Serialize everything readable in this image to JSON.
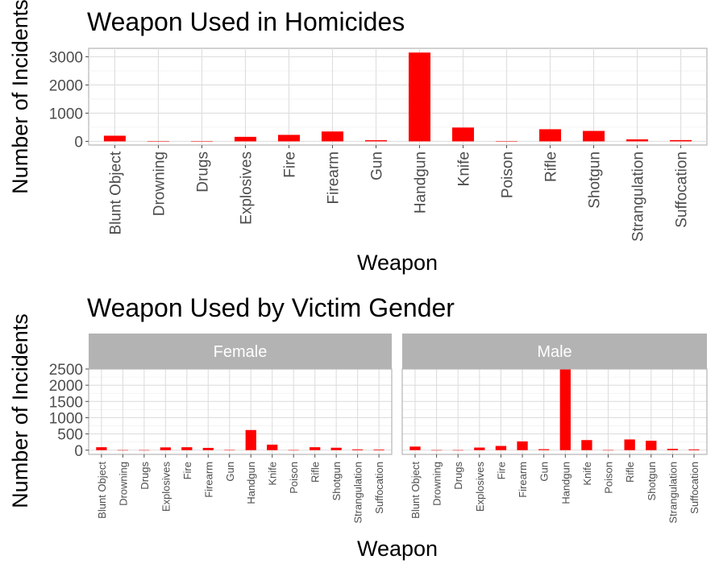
{
  "chart_data": [
    {
      "type": "bar",
      "title": "Weapon Used in Homicides",
      "xlabel": "Weapon",
      "ylabel": "Number of Incidents",
      "categories": [
        "Blunt Object",
        "Drowning",
        "Drugs",
        "Explosives",
        "Fire",
        "Firearm",
        "Gun",
        "Handgun",
        "Knife",
        "Poison",
        "Rifle",
        "Shotgun",
        "Strangulation",
        "Suffocation"
      ],
      "values": [
        200,
        2,
        2,
        160,
        230,
        350,
        40,
        3150,
        490,
        5,
        430,
        370,
        70,
        45
      ],
      "yticks": [
        0,
        1000,
        2000,
        3000
      ],
      "ylim": [
        -130,
        3300
      ],
      "bar_color": "#ff0000",
      "grid": true
    },
    {
      "type": "bar",
      "title": "Weapon Used by Victim Gender",
      "xlabel": "Weapon",
      "ylabel": "Number of Incidents",
      "categories": [
        "Blunt Object",
        "Drowning",
        "Drugs",
        "Explosives",
        "Fire",
        "Firearm",
        "Gun",
        "Handgun",
        "Knife",
        "Poison",
        "Rifle",
        "Shotgun",
        "Strangulation",
        "Suffocation"
      ],
      "yticks": [
        0,
        500,
        1000,
        1500,
        2000,
        2500
      ],
      "ylim": [
        -130,
        2500
      ],
      "bar_color": "#ff0000",
      "grid": true,
      "facets": [
        {
          "name": "Female",
          "values": [
            90,
            2,
            2,
            85,
            90,
            70,
            5,
            620,
            170,
            3,
            90,
            75,
            25,
            20
          ]
        },
        {
          "name": "Male",
          "values": [
            110,
            2,
            2,
            80,
            130,
            270,
            30,
            2500,
            310,
            3,
            330,
            290,
            40,
            25
          ]
        }
      ]
    }
  ]
}
